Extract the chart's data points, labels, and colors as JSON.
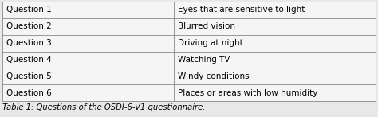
{
  "rows": [
    [
      "Question 1",
      "Eyes that are sensitive to light"
    ],
    [
      "Question 2",
      "Blurred vision"
    ],
    [
      "Question 3",
      "Driving at night"
    ],
    [
      "Question 4",
      "Watching TV"
    ],
    [
      "Question 5",
      "Windy conditions"
    ],
    [
      "Question 6",
      "Places or areas with low humidity"
    ]
  ],
  "caption": "Table 1: Questions of the OSDI-6-V1 questionnaire.",
  "col_split": 0.46,
  "background_color": "#e8e8e8",
  "table_bg": "#f0f0f0",
  "border_color": "#888888",
  "text_color": "#000000",
  "font_size": 7.5,
  "caption_font_size": 7.2,
  "line_width": 0.6
}
